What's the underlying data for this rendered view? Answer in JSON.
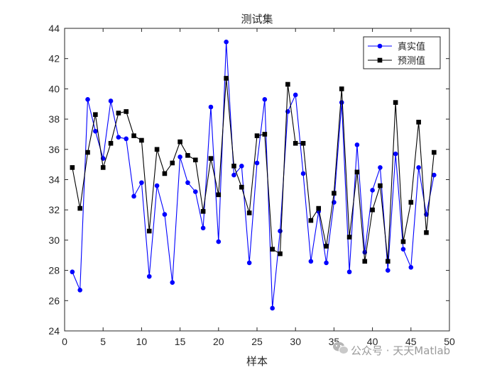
{
  "chart_data": {
    "type": "line",
    "title": "测试集",
    "xlabel": "样本",
    "ylabel": "",
    "xlim": [
      0,
      50
    ],
    "ylim": [
      24,
      44
    ],
    "xticks": [
      0,
      5,
      10,
      15,
      20,
      25,
      30,
      35,
      40,
      45,
      50
    ],
    "yticks": [
      24,
      26,
      28,
      30,
      32,
      34,
      36,
      38,
      40,
      42,
      44
    ],
    "grid": false,
    "legend_position": "top-right",
    "x": [
      1,
      2,
      3,
      4,
      5,
      6,
      7,
      8,
      9,
      10,
      11,
      12,
      13,
      14,
      15,
      16,
      17,
      18,
      19,
      20,
      21,
      22,
      23,
      24,
      25,
      26,
      27,
      28,
      29,
      30,
      31,
      32,
      33,
      34,
      35,
      36,
      37,
      38,
      39,
      40,
      41,
      42,
      43,
      44,
      45,
      46,
      47,
      48
    ],
    "series": [
      {
        "name": "真实值",
        "color": "#0000ff",
        "marker": "circle",
        "values": [
          27.9,
          26.7,
          39.3,
          37.2,
          35.4,
          39.2,
          36.8,
          36.7,
          32.9,
          33.8,
          27.6,
          33.6,
          31.7,
          27.2,
          35.5,
          33.8,
          33.2,
          30.8,
          38.8,
          29.9,
          43.1,
          34.3,
          34.9,
          28.5,
          35.1,
          39.3,
          25.5,
          30.6,
          38.5,
          39.6,
          34.4,
          28.6,
          31.9,
          28.5,
          32.5,
          39.1,
          27.9,
          36.3,
          29.2,
          33.3,
          34.8,
          28.0,
          35.7,
          29.4,
          28.2,
          34.8,
          31.7,
          34.3
        ]
      },
      {
        "name": "预测值",
        "color": "#000000",
        "marker": "square",
        "values": [
          34.8,
          32.1,
          35.8,
          38.3,
          34.8,
          36.4,
          38.4,
          38.5,
          36.9,
          36.6,
          30.6,
          36.0,
          34.4,
          35.1,
          36.5,
          35.6,
          35.3,
          31.9,
          35.4,
          33.0,
          40.7,
          34.9,
          33.5,
          31.8,
          36.9,
          37.0,
          29.4,
          29.1,
          40.3,
          36.4,
          36.4,
          31.3,
          32.1,
          29.6,
          33.1,
          40.0,
          30.2,
          34.5,
          28.6,
          32.0,
          33.6,
          28.6,
          39.1,
          29.9,
          32.5,
          37.8,
          30.5,
          35.8
        ]
      }
    ]
  },
  "watermark": {
    "text": "公众号 · 天天Matlab"
  }
}
